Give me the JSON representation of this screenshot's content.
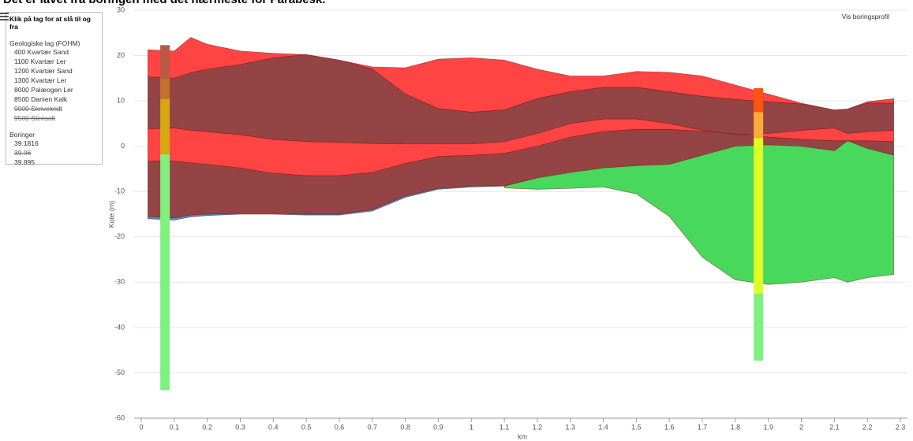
{
  "chart_data": {
    "type": "cross-section",
    "title": "Det er lavet fra boringen med det nærmeste for Farabesk.",
    "x_label": "km",
    "y_label": "Kote (m)",
    "xlim": [
      0,
      2.3
    ],
    "ylim": [
      -60,
      30
    ],
    "xticks": [
      0,
      0.1,
      0.2,
      0.3,
      0.4,
      0.5,
      0.6,
      0.7,
      0.8,
      0.9,
      1,
      1.1,
      1.2,
      1.3,
      1.4,
      1.5,
      1.6,
      1.7,
      1.8,
      1.9,
      2,
      2.1,
      2.2,
      2.3
    ],
    "yticks": [
      -60,
      -50,
      -40,
      -30,
      -20,
      -10,
      0,
      10,
      20,
      30
    ],
    "grid": true,
    "legend_title": "Klik på lag for at slå til og fra",
    "layers_title": "Geologiske lag (FOHM)",
    "boreholes_title": "Boringer",
    "profile_button": "Vis boringsprofil",
    "x": [
      0.02,
      0.1,
      0.15,
      0.2,
      0.3,
      0.4,
      0.5,
      0.6,
      0.7,
      0.8,
      0.9,
      1.0,
      1.1,
      1.2,
      1.3,
      1.4,
      1.5,
      1.6,
      1.7,
      1.8,
      1.9,
      2.0,
      2.1,
      2.14,
      2.2,
      2.28
    ],
    "series": [
      {
        "name": "400 Kvartær Sand",
        "color": "#ff3a3a",
        "visible": true,
        "top": [
          21.3,
          21,
          24,
          22.5,
          21,
          20.5,
          20.2,
          19,
          17.5,
          17.3,
          19.2,
          19.5,
          19,
          17,
          15.5,
          15.5,
          16.5,
          16.3,
          15.5,
          13.5,
          11.5,
          9.5,
          8,
          8.2,
          9.8,
          10.5
        ],
        "bottom": [
          15.3,
          15,
          16.2,
          17,
          18,
          19.5,
          20.2,
          19,
          17,
          11.5,
          8.3,
          7.5,
          8,
          10.5,
          12,
          13,
          13,
          12,
          11,
          10.3,
          9.8,
          9.3,
          8,
          8.2,
          9.5,
          9.5
        ]
      },
      {
        "name": "1100 Kvartær Ler",
        "color": "#8e3a3a",
        "visible": true,
        "top": [
          15.3,
          15,
          16.2,
          17,
          18,
          19.5,
          20.2,
          19,
          17,
          11.5,
          8.3,
          7.5,
          8,
          10.5,
          12,
          13,
          13,
          12,
          11,
          10.3,
          9.8,
          9.3,
          8,
          8.2,
          9.5,
          9.5
        ],
        "bottom": [
          3.8,
          4,
          3.5,
          3.2,
          2.5,
          1.5,
          1,
          0.8,
          0.6,
          0.5,
          0.5,
          0.5,
          1,
          2.8,
          5,
          6,
          6,
          5,
          3.5,
          2.5,
          2.8,
          3.5,
          4,
          2.8,
          3.2,
          3.5
        ]
      },
      {
        "name": "1200 Kvartær Sand",
        "color": "#ff3a3a",
        "visible": true,
        "top": [
          3.8,
          4,
          3.5,
          3.2,
          2.5,
          1.5,
          1,
          0.8,
          0.6,
          0.5,
          0.5,
          0.5,
          1,
          2.8,
          5,
          6,
          6,
          5,
          3.5,
          2.5,
          2.8,
          3.5,
          4,
          2.8,
          3.2,
          3.5
        ],
        "bottom": [
          -3.3,
          -3.3,
          -3.7,
          -4,
          -4.8,
          -6,
          -6.5,
          -6.5,
          -5.8,
          -3.8,
          -2.3,
          -2,
          -1.6,
          0,
          2,
          3.2,
          3.7,
          3.7,
          3.3,
          2.7,
          2,
          1.5,
          1.2,
          1.2,
          1.2,
          1
        ]
      },
      {
        "name": "1300 Kvartær Ler",
        "color": "#8e3a3a",
        "visible": true,
        "top": [
          -3.3,
          -3.3,
          -3.7,
          -4,
          -4.8,
          -6,
          -6.5,
          -6.5,
          -5.8,
          -3.8,
          -2.3,
          -2,
          -1.6,
          0,
          2,
          3.2,
          3.7,
          3.7,
          3.3,
          2.7,
          2,
          1.5,
          1.2,
          1.2,
          1.2,
          1
        ],
        "bottom": [
          -15.5,
          -15.8,
          -15.2,
          -15,
          -14.8,
          -14.8,
          -15,
          -15,
          -14,
          -11,
          -9.3,
          -8.8,
          -8.7,
          -7,
          -5.8,
          -4.8,
          -4.3,
          -4,
          -2,
          0,
          0.3,
          0,
          -1,
          1.2,
          -0.5,
          -2
        ]
      },
      {
        "name": "8000 Palæogen Ler",
        "color": "#3a8fbf",
        "visible": true,
        "top": [
          -15.5,
          -15.8,
          -15.2,
          -15,
          -14.8,
          -14.8,
          -15,
          -15,
          -14,
          -11,
          -9.3,
          -8.8,
          -8.7,
          -7,
          null,
          null,
          null,
          null,
          null,
          null,
          null,
          null,
          null,
          null,
          null,
          null
        ],
        "bottom": [
          -16,
          -16.3,
          -15.6,
          -15.3,
          -15,
          -15,
          -15.2,
          -15.2,
          -14.3,
          -11.3,
          -9.5,
          -9,
          -8.8,
          -7,
          null,
          null,
          null,
          null,
          null,
          null,
          null,
          null,
          null,
          null,
          null,
          null
        ]
      },
      {
        "name": "8500 Danien Kalk",
        "color": "#3ed652",
        "visible": true,
        "top": [
          null,
          null,
          null,
          null,
          null,
          null,
          null,
          null,
          null,
          null,
          null,
          null,
          -8.8,
          -7,
          -5.8,
          -4.8,
          -4.3,
          -4,
          -2,
          0,
          0.3,
          0,
          -1,
          1.2,
          -0.5,
          -2
        ],
        "bottom": [
          null,
          null,
          null,
          null,
          null,
          null,
          null,
          null,
          null,
          null,
          null,
          null,
          -9.2,
          -9.5,
          -9.3,
          -9,
          -10.5,
          -15.5,
          -24.5,
          -29.5,
          -30.5,
          -30,
          -29,
          -30,
          -29,
          -28.3
        ]
      },
      {
        "name": "9000 Skrivekridt",
        "visible": false
      },
      {
        "name": "9500 Stensalt",
        "visible": false
      }
    ],
    "boreholes": [
      {
        "name": "39.1816",
        "visible": true,
        "x": 0.072,
        "segments": [
          {
            "top": 22.3,
            "bottom": 15,
            "color": "#b85a45"
          },
          {
            "top": 15,
            "bottom": 10.4,
            "color": "#c4702e"
          },
          {
            "top": 10.4,
            "bottom": -1.8,
            "color": "#d6a812"
          },
          {
            "top": -1.8,
            "bottom": -53.8,
            "color": "#80f080"
          }
        ]
      },
      {
        "name": "39.96",
        "visible": false
      },
      {
        "name": "39.895",
        "visible": true,
        "x": 1.87,
        "segments": [
          {
            "top": 12.8,
            "bottom": 7.5,
            "color": "#ff5512"
          },
          {
            "top": 7.5,
            "bottom": 1.8,
            "color": "#ffaa3a"
          },
          {
            "top": 1.8,
            "bottom": -32.5,
            "color": "#ddff22"
          },
          {
            "top": -32.5,
            "bottom": -47.3,
            "color": "#80f080"
          }
        ]
      }
    ]
  }
}
